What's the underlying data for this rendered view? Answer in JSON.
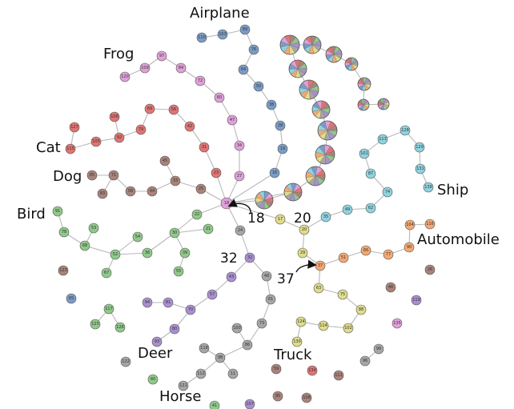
{
  "palette": {
    "Airplane": "#7a9cc6",
    "Frog": "#e0a0d8",
    "Cat": "#e07474",
    "Dog": "#a9837a",
    "Bird": "#8fc98a",
    "Deer": "#a98fd0",
    "Horse": "#a6a6a6",
    "Truck": "#e0dc8a",
    "Automobile": "#f2a873",
    "Ship": "#8fd3df",
    "Edge": "#b8b8b8"
  },
  "class_labels": [
    "Airplane",
    "Frog",
    "Cat",
    "Dog",
    "Bird",
    "Deer",
    "Horse",
    "Truck",
    "Automobile",
    "Ship"
  ],
  "callouts": [
    "18",
    "20",
    "32",
    "37"
  ],
  "nodes": [
    {
      "id": "110",
      "cls": "Airplane"
    },
    {
      "id": "103",
      "cls": "Airplane"
    },
    {
      "id": "89",
      "cls": "Airplane"
    },
    {
      "id": "76",
      "cls": "Airplane"
    },
    {
      "id": "64",
      "cls": "Airplane"
    },
    {
      "id": "50",
      "cls": "Airplane"
    },
    {
      "id": "38",
      "cls": "Airplane"
    },
    {
      "id": "28",
      "cls": "Airplane"
    },
    {
      "id": "19",
      "cls": "Airplane"
    },
    {
      "id": "16",
      "cls": "Airplane"
    },
    {
      "id": "120",
      "cls": "Frog"
    },
    {
      "id": "109",
      "cls": "Frog"
    },
    {
      "id": "97",
      "cls": "Frog"
    },
    {
      "id": "84",
      "cls": "Frog"
    },
    {
      "id": "72",
      "cls": "Frog"
    },
    {
      "id": "60",
      "cls": "Frog"
    },
    {
      "id": "47",
      "cls": "Frog"
    },
    {
      "id": "34",
      "cls": "Frog"
    },
    {
      "id": "27",
      "cls": "Frog"
    },
    {
      "id": "127",
      "cls": "Cat"
    },
    {
      "id": "115",
      "cls": "Cat"
    },
    {
      "id": "106",
      "cls": "Cat"
    },
    {
      "id": "105",
      "cls": "Cat"
    },
    {
      "id": "92",
      "cls": "Cat"
    },
    {
      "id": "79",
      "cls": "Cat"
    },
    {
      "id": "69",
      "cls": "Cat"
    },
    {
      "id": "56",
      "cls": "Cat"
    },
    {
      "id": "42",
      "cls": "Cat"
    },
    {
      "id": "31",
      "cls": "Cat"
    },
    {
      "id": "23",
      "cls": "Cat"
    },
    {
      "id": "85",
      "cls": "Dog"
    },
    {
      "id": "71",
      "cls": "Dog"
    },
    {
      "id": "83",
      "cls": "Dog"
    },
    {
      "id": "58",
      "cls": "Dog"
    },
    {
      "id": "44",
      "cls": "Dog"
    },
    {
      "id": "45",
      "cls": "Dog"
    },
    {
      "id": "33",
      "cls": "Dog"
    },
    {
      "id": "25",
      "cls": "Dog"
    },
    {
      "id": "91",
      "cls": "Bird"
    },
    {
      "id": "78",
      "cls": "Bird"
    },
    {
      "id": "68",
      "cls": "Bird"
    },
    {
      "id": "53",
      "cls": "Bird"
    },
    {
      "id": "52",
      "cls": "Bird"
    },
    {
      "id": "67",
      "cls": "Bird"
    },
    {
      "id": "54",
      "cls": "Bird"
    },
    {
      "id": "36",
      "cls": "Bird"
    },
    {
      "id": "30",
      "cls": "Bird"
    },
    {
      "id": "22",
      "cls": "Bird"
    },
    {
      "id": "21",
      "cls": "Bird"
    },
    {
      "id": "39",
      "cls": "Bird"
    },
    {
      "id": "55",
      "cls": "Bird"
    },
    {
      "id": "117",
      "cls": "Bird"
    },
    {
      "id": "125",
      "cls": "Bird"
    },
    {
      "id": "126",
      "cls": "Bird"
    },
    {
      "id": "40",
      "cls": "Bird"
    },
    {
      "id": "41",
      "cls": "Bird"
    },
    {
      "id": "24",
      "cls": "Horse"
    },
    {
      "id": "32",
      "cls": "Deer"
    },
    {
      "id": "43",
      "cls": "Deer"
    },
    {
      "id": "57",
      "cls": "Deer"
    },
    {
      "id": "70",
      "cls": "Deer"
    },
    {
      "id": "81",
      "cls": "Deer"
    },
    {
      "id": "94",
      "cls": "Deer"
    },
    {
      "id": "80",
      "cls": "Deer"
    },
    {
      "id": "93",
      "cls": "Deer"
    },
    {
      "id": "65",
      "cls": "Airplane"
    },
    {
      "id": "119",
      "cls": "Deer"
    },
    {
      "id": "107",
      "cls": "Deer"
    },
    {
      "id": "48",
      "cls": "Horse"
    },
    {
      "id": "61",
      "cls": "Horse"
    },
    {
      "id": "73",
      "cls": "Horse"
    },
    {
      "id": "86",
      "cls": "Horse"
    },
    {
      "id": "100",
      "cls": "Horse"
    },
    {
      "id": "98",
      "cls": "Horse"
    },
    {
      "id": "118",
      "cls": "Horse"
    },
    {
      "id": "112",
      "cls": "Horse"
    },
    {
      "id": "11",
      "cls": "Horse"
    },
    {
      "id": "121",
      "cls": "Horse"
    },
    {
      "id": "122",
      "cls": "Horse"
    },
    {
      "id": "96",
      "cls": "Horse"
    },
    {
      "id": "99",
      "cls": "Horse"
    },
    {
      "id": "17",
      "cls": "Truck"
    },
    {
      "id": "20",
      "cls": "Truck"
    },
    {
      "id": "29",
      "cls": "Truck"
    },
    {
      "id": "63",
      "cls": "Truck"
    },
    {
      "id": "75",
      "cls": "Truck"
    },
    {
      "id": "88",
      "cls": "Truck"
    },
    {
      "id": "102",
      "cls": "Truck"
    },
    {
      "id": "114",
      "cls": "Truck"
    },
    {
      "id": "124",
      "cls": "Truck"
    },
    {
      "id": "130",
      "cls": "Truck"
    },
    {
      "id": "37",
      "cls": "Automobile"
    },
    {
      "id": "51",
      "cls": "Automobile"
    },
    {
      "id": "66",
      "cls": "Automobile"
    },
    {
      "id": "77",
      "cls": "Automobile"
    },
    {
      "id": "90",
      "cls": "Automobile"
    },
    {
      "id": "104",
      "cls": "Automobile"
    },
    {
      "id": "116",
      "cls": "Automobile"
    },
    {
      "id": "35",
      "cls": "Ship"
    },
    {
      "id": "49",
      "cls": "Ship"
    },
    {
      "id": "62",
      "cls": "Ship"
    },
    {
      "id": "74",
      "cls": "Ship"
    },
    {
      "id": "87",
      "cls": "Ship"
    },
    {
      "id": "101",
      "cls": "Ship"
    },
    {
      "id": "113",
      "cls": "Ship"
    },
    {
      "id": "128",
      "cls": "Ship"
    },
    {
      "id": "129",
      "cls": "Ship"
    },
    {
      "id": "131",
      "cls": "Ship"
    },
    {
      "id": "138",
      "cls": "Ship"
    },
    {
      "id": "123",
      "cls": "Dog"
    },
    {
      "id": "46",
      "cls": "Dog"
    },
    {
      "id": "26",
      "cls": "Dog"
    },
    {
      "id": "59",
      "cls": "Dog"
    },
    {
      "id": "95",
      "cls": "Dog"
    },
    {
      "id": "108",
      "cls": "Dog"
    },
    {
      "id": "111",
      "cls": "Dog"
    },
    {
      "id": "134",
      "cls": "Cat"
    },
    {
      "id": "135",
      "cls": "Frog"
    },
    {
      "id": "18",
      "cls": "Frog"
    }
  ]
}
